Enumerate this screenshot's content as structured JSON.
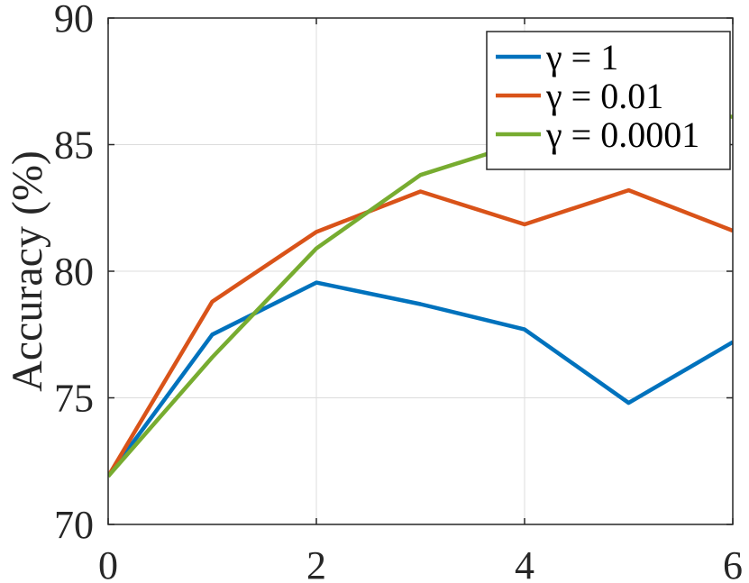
{
  "chart_data": {
    "type": "line",
    "title": "",
    "xlabel": "",
    "ylabel": "Accuracy (%)",
    "xlim": [
      0,
      6
    ],
    "ylim": [
      70,
      90
    ],
    "x_ticks": [
      "0",
      "2",
      "4",
      "6"
    ],
    "y_ticks": [
      "70",
      "75",
      "80",
      "85",
      "90"
    ],
    "grid": true,
    "legend_position": "top-right",
    "x": [
      0,
      1,
      2,
      3,
      4,
      5,
      6
    ],
    "series": [
      {
        "name": "γ = 1",
        "color": "#0072BD",
        "values": [
          71.9,
          77.5,
          79.55,
          78.7,
          77.7,
          74.8,
          77.2
        ]
      },
      {
        "name": "γ = 0.01",
        "color": "#D95319",
        "values": [
          71.9,
          78.8,
          81.55,
          83.15,
          81.85,
          83.2,
          81.6
        ]
      },
      {
        "name": "γ = 0.0001",
        "color": "#77AC30",
        "values": [
          71.9,
          76.6,
          80.9,
          83.8,
          85.1,
          86.4,
          86.1
        ]
      }
    ]
  }
}
